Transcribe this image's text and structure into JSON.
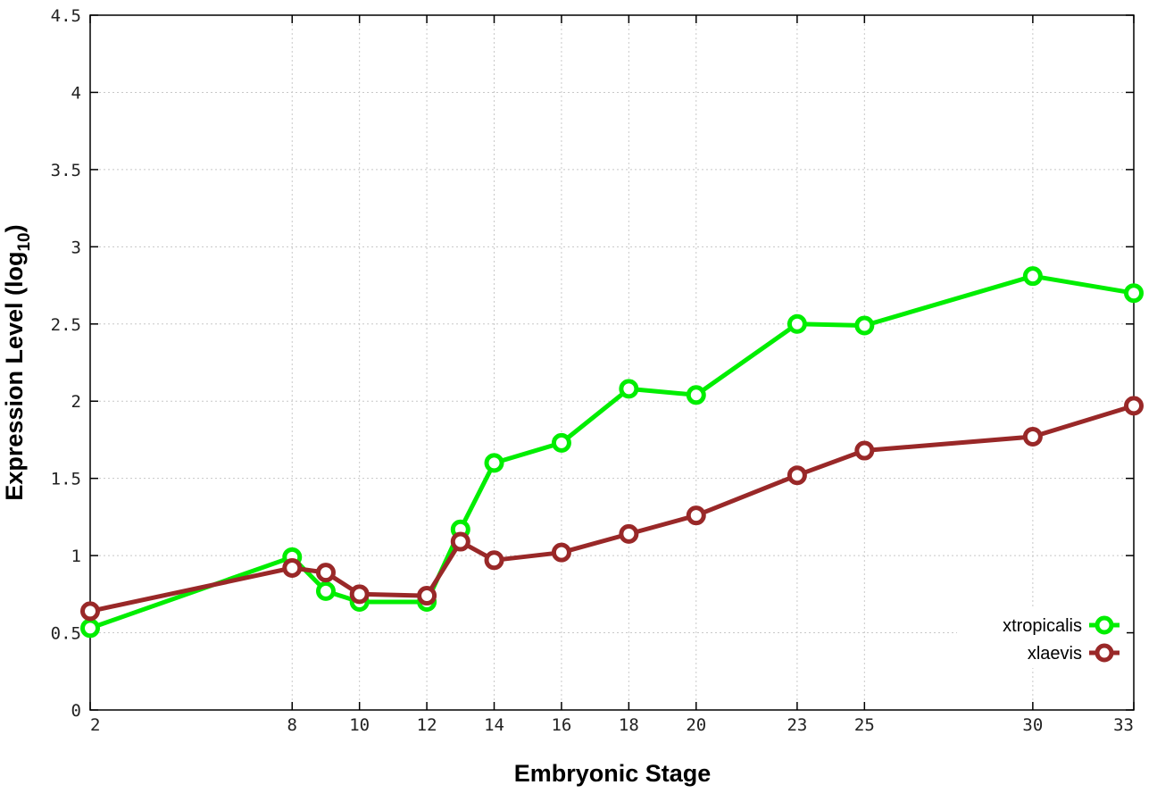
{
  "chart_data": {
    "type": "line",
    "title": "",
    "xlabel": "Embryonic Stage",
    "ylabel_main": "Expression Level (log",
    "ylabel_sub": "10",
    "ylabel_close": ")",
    "xlim": [
      2,
      33
    ],
    "ylim": [
      0,
      4.5
    ],
    "x_ticks": [
      2,
      8,
      10,
      12,
      14,
      16,
      18,
      20,
      23,
      25,
      30,
      33
    ],
    "y_ticks": [
      0,
      0.5,
      1,
      1.5,
      2,
      2.5,
      3,
      3.5,
      4,
      4.5
    ],
    "x_tick_labels": [
      "2",
      "8",
      "10",
      "12",
      "14",
      "16",
      "18",
      "20",
      "23",
      "25",
      "30",
      "33"
    ],
    "y_tick_labels": [
      "0",
      "0.5",
      "1",
      "1.5",
      "2",
      "2.5",
      "3",
      "3.5",
      "4",
      "4.5"
    ],
    "grid": true,
    "legend_position": "bottom-right",
    "series": [
      {
        "name": "xtropicalis",
        "color": "#00ee00",
        "x": [
          2,
          8,
          9,
          10,
          12,
          13,
          14,
          16,
          18,
          20,
          23,
          25,
          30,
          33
        ],
        "y": [
          0.53,
          0.99,
          0.77,
          0.7,
          0.7,
          1.17,
          1.6,
          1.73,
          2.08,
          2.04,
          2.5,
          2.49,
          2.81,
          2.7
        ]
      },
      {
        "name": "xlaevis",
        "color": "#992828",
        "x": [
          2,
          8,
          9,
          10,
          12,
          13,
          14,
          16,
          18,
          20,
          23,
          25,
          30,
          33
        ],
        "y": [
          0.64,
          0.92,
          0.89,
          0.75,
          0.74,
          1.09,
          0.97,
          1.02,
          1.14,
          1.26,
          1.52,
          1.68,
          1.77,
          1.97
        ]
      }
    ]
  }
}
